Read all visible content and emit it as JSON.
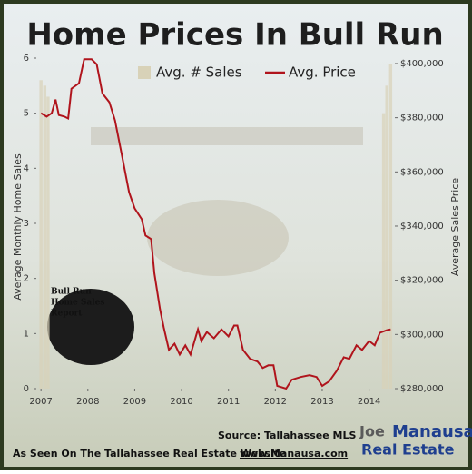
{
  "chart_data": {
    "type": "bar-line",
    "title": "Home Prices In Bull Run",
    "y_label": "Average Monthly Home Sales",
    "y2_label": "Average Sales Price",
    "xlim": [
      2006.9,
      2014.55
    ],
    "xticks": [
      2007,
      2008,
      2009,
      2010,
      2011,
      2012,
      2013,
      2014
    ],
    "ylim": [
      0,
      6
    ],
    "yticks": [
      0,
      1,
      2,
      3,
      4,
      5,
      6
    ],
    "y2lim": [
      280000,
      402000
    ],
    "y2ticks": [
      {
        "value": 280000,
        "label": "$280,000"
      },
      {
        "value": 300000,
        "label": "$300,000"
      },
      {
        "value": 320000,
        "label": "$320,000"
      },
      {
        "value": 340000,
        "label": "$340,000"
      },
      {
        "value": 360000,
        "label": "$360,000"
      },
      {
        "value": 380000,
        "label": "$380,000"
      },
      {
        "value": 400000,
        "label": "$400,000"
      }
    ],
    "series": [
      {
        "name": "Avg. # Sales",
        "type": "bar",
        "color": "#d8d2b8",
        "x": [
          2007.0,
          2007.08,
          2007.15,
          2014.31,
          2014.38,
          2014.46
        ],
        "values": [
          5.6,
          5.5,
          5.3,
          5.0,
          5.5,
          5.9
        ]
      },
      {
        "name": "Avg. Price",
        "type": "line",
        "axis": "y2",
        "color": "#b0141c",
        "x": [
          2007.0,
          2007.12,
          2007.23,
          2007.31,
          2007.38,
          2007.5,
          2007.58,
          2007.65,
          2007.81,
          2007.92,
          2008.08,
          2008.19,
          2008.31,
          2008.46,
          2008.58,
          2008.73,
          2008.88,
          2009.0,
          2009.15,
          2009.23,
          2009.35,
          2009.42,
          2009.54,
          2009.62,
          2009.73,
          2009.85,
          2009.96,
          2010.08,
          2010.19,
          2010.35,
          2010.42,
          2010.54,
          2010.69,
          2010.85,
          2011.0,
          2011.12,
          2011.19,
          2011.31,
          2011.46,
          2011.62,
          2011.73,
          2011.85,
          2011.96,
          2012.04,
          2012.23,
          2012.35,
          2012.54,
          2012.73,
          2012.88,
          2013.0,
          2013.15,
          2013.31,
          2013.46,
          2013.58,
          2013.73,
          2013.85,
          2014.0,
          2014.12,
          2014.23,
          2014.38,
          2014.46
        ],
        "values": [
          381700,
          380400,
          381700,
          386700,
          381000,
          380400,
          379700,
          390700,
          392700,
          401600,
          401600,
          399700,
          389000,
          385700,
          379000,
          365800,
          352500,
          346500,
          342500,
          336500,
          335200,
          322500,
          309300,
          302600,
          294300,
          296600,
          292600,
          296000,
          292600,
          301900,
          297600,
          300900,
          298600,
          301900,
          299300,
          303300,
          303300,
          294300,
          291000,
          290000,
          287600,
          288600,
          288600,
          281000,
          280000,
          283300,
          284300,
          285000,
          284300,
          281000,
          282700,
          286600,
          291600,
          291000,
          296000,
          294300,
          297600,
          296000,
          300600,
          301600,
          301900
        ]
      }
    ],
    "legend": "top",
    "photo_caption": [
      "Bull Run",
      "Home Sales",
      "Report"
    ],
    "source": "Source: Tallahassee MLS",
    "footer": "As Seen On The Tallahassee Real Estate Website",
    "footer_link": "www.Manausa.com",
    "logo": [
      "Joe",
      "Manausa",
      "Real Estate"
    ]
  }
}
